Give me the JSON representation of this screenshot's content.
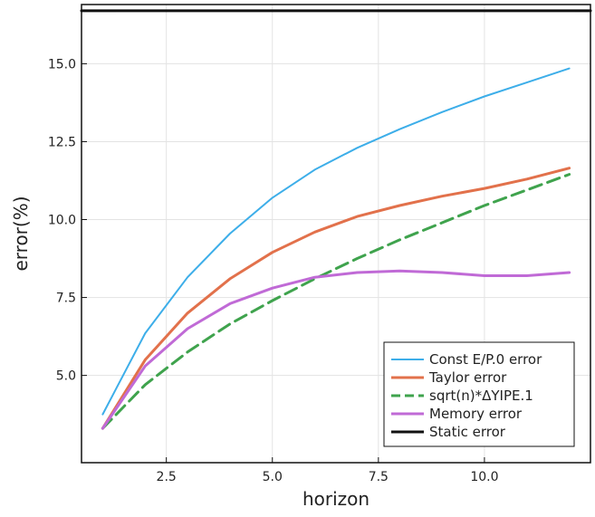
{
  "chart_data": {
    "type": "line",
    "title": "",
    "xlabel": "horizon",
    "ylabel": "error(%)",
    "xlim": [
      0.5,
      12.5
    ],
    "ylim": [
      2.2,
      16.9
    ],
    "xticks": [
      2.5,
      5.0,
      7.5,
      10.0
    ],
    "xtick_labels": [
      "2.5",
      "5.0",
      "7.5",
      "10.0"
    ],
    "yticks": [
      5.0,
      7.5,
      10.0,
      12.5,
      15.0
    ],
    "ytick_labels": [
      "5.0",
      "7.5",
      "10.0",
      "12.5",
      "15.0"
    ],
    "grid": true,
    "legend_position": "bottom-right",
    "series": [
      {
        "name": "Const E/P.0 error",
        "color": "#3daee9",
        "style": "solid",
        "x": [
          1,
          2,
          3,
          4,
          5,
          6,
          7,
          8,
          9,
          10,
          11,
          12
        ],
        "y": [
          3.75,
          6.35,
          8.15,
          9.55,
          10.7,
          11.6,
          12.3,
          12.9,
          13.45,
          13.95,
          14.4,
          14.85
        ]
      },
      {
        "name": "Taylor error",
        "color": "#e2714b",
        "style": "solid",
        "x": [
          1,
          2,
          3,
          4,
          5,
          6,
          7,
          8,
          9,
          10,
          11,
          12
        ],
        "y": [
          3.3,
          5.5,
          7.0,
          8.1,
          8.95,
          9.6,
          10.1,
          10.45,
          10.75,
          11.0,
          11.3,
          11.65
        ]
      },
      {
        "name": "sqrt(n)*ΔYIPE.1",
        "color": "#3fa34d",
        "style": "dashed",
        "x": [
          1,
          2,
          3,
          4,
          5,
          6,
          7,
          8,
          9,
          10,
          11,
          12
        ],
        "y": [
          3.3,
          4.7,
          5.75,
          6.65,
          7.4,
          8.1,
          8.75,
          9.35,
          9.9,
          10.45,
          10.95,
          11.45
        ]
      },
      {
        "name": "Memory error",
        "color": "#c06ad6",
        "style": "solid",
        "x": [
          1,
          2,
          3,
          4,
          5,
          6,
          7,
          8,
          9,
          10,
          11,
          12
        ],
        "y": [
          3.3,
          5.3,
          6.5,
          7.3,
          7.8,
          8.15,
          8.3,
          8.35,
          8.3,
          8.2,
          8.2,
          8.3
        ]
      },
      {
        "name": "Static error",
        "color": "#111111",
        "style": "solid",
        "x": [
          0.5,
          12.5
        ],
        "y": [
          16.7,
          16.7
        ]
      }
    ]
  }
}
